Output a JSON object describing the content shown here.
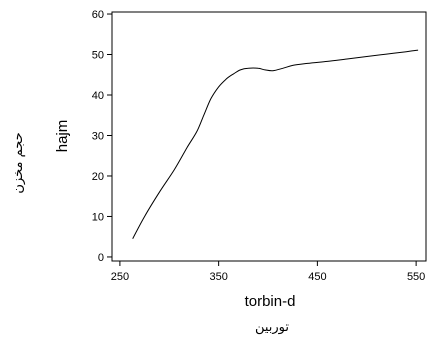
{
  "chart_data": {
    "type": "line",
    "xlabel": "torbin-d",
    "ylabel": "hajm",
    "xlabel_secondary": "توربين",
    "ylabel_secondary": "حجم مخزن",
    "xlim": [
      242,
      560
    ],
    "ylim": [
      -1,
      60.5
    ],
    "x_ticks": [
      250,
      350,
      450,
      550
    ],
    "y_ticks": [
      0,
      10,
      20,
      30,
      40,
      50,
      60
    ],
    "grid": false,
    "series": [
      {
        "x": [
          263,
          275,
          290,
          305,
          318,
          328,
          335,
          342,
          350,
          358,
          365,
          372,
          380,
          390,
          397,
          405,
          415,
          425,
          440,
          460,
          480,
          500,
          520,
          540,
          552
        ],
        "y": [
          4.5,
          10,
          16,
          21.5,
          27,
          31,
          35,
          39,
          42,
          44,
          45.2,
          46.2,
          46.6,
          46.6,
          46.2,
          46.0,
          46.6,
          47.3,
          47.8,
          48.3,
          48.9,
          49.5,
          50.1,
          50.7,
          51.1
        ]
      }
    ]
  }
}
